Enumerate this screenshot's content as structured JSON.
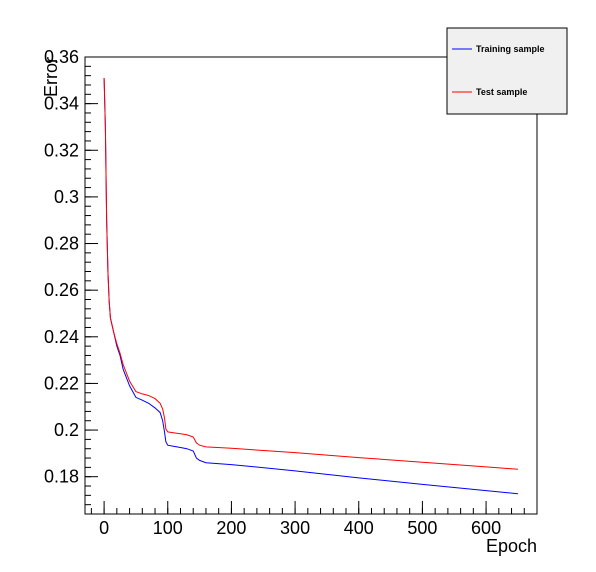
{
  "chart_data": {
    "type": "line",
    "xlabel": "Epoch",
    "ylabel": "Error",
    "xlim": [
      -30,
      680
    ],
    "ylim": [
      0.164,
      0.36
    ],
    "xticks": [
      0,
      100,
      200,
      300,
      400,
      500,
      600
    ],
    "xtick_labels": [
      "0",
      "100",
      "200",
      "300",
      "400",
      "500",
      "600"
    ],
    "yticks": [
      0.18,
      0.2,
      0.22,
      0.24,
      0.26,
      0.28,
      0.3,
      0.32,
      0.34,
      0.36
    ],
    "ytick_labels": [
      "0.18",
      "0.2",
      "0.22",
      "0.24",
      "0.26",
      "0.28",
      "0.3",
      "0.32",
      "0.34",
      "0.36"
    ],
    "grid": false,
    "legend_position": "top-right",
    "series": [
      {
        "name": "Training sample",
        "color": "#0000ff",
        "x": [
          0,
          2,
          4,
          6,
          8,
          10,
          15,
          20,
          25,
          30,
          40,
          50,
          60,
          70,
          80,
          88,
          92,
          95,
          97,
          100,
          110,
          120,
          130,
          140,
          145,
          150,
          160,
          200,
          300,
          400,
          500,
          600,
          650
        ],
        "y": [
          0.351,
          0.33,
          0.29,
          0.268,
          0.255,
          0.248,
          0.242,
          0.236,
          0.232,
          0.226,
          0.219,
          0.214,
          0.2128,
          0.2115,
          0.2095,
          0.2075,
          0.204,
          0.199,
          0.195,
          0.1935,
          0.193,
          0.1925,
          0.192,
          0.191,
          0.188,
          0.187,
          0.186,
          0.1852,
          0.1825,
          0.1795,
          0.1767,
          0.174,
          0.1727
        ]
      },
      {
        "name": "Test sample",
        "color": "#ff0000",
        "x": [
          0,
          2,
          4,
          6,
          8,
          10,
          15,
          20,
          25,
          30,
          40,
          50,
          60,
          70,
          80,
          88,
          92,
          95,
          97,
          100,
          110,
          120,
          130,
          140,
          145,
          150,
          160,
          200,
          300,
          400,
          500,
          600,
          650
        ],
        "y": [
          0.351,
          0.33,
          0.29,
          0.268,
          0.255,
          0.248,
          0.242,
          0.237,
          0.233,
          0.228,
          0.221,
          0.2165,
          0.2155,
          0.2148,
          0.2135,
          0.2115,
          0.209,
          0.205,
          0.2005,
          0.1992,
          0.1988,
          0.1984,
          0.198,
          0.197,
          0.1945,
          0.1935,
          0.1928,
          0.1922,
          0.1903,
          0.1882,
          0.1862,
          0.1842,
          0.1832
        ]
      }
    ]
  }
}
